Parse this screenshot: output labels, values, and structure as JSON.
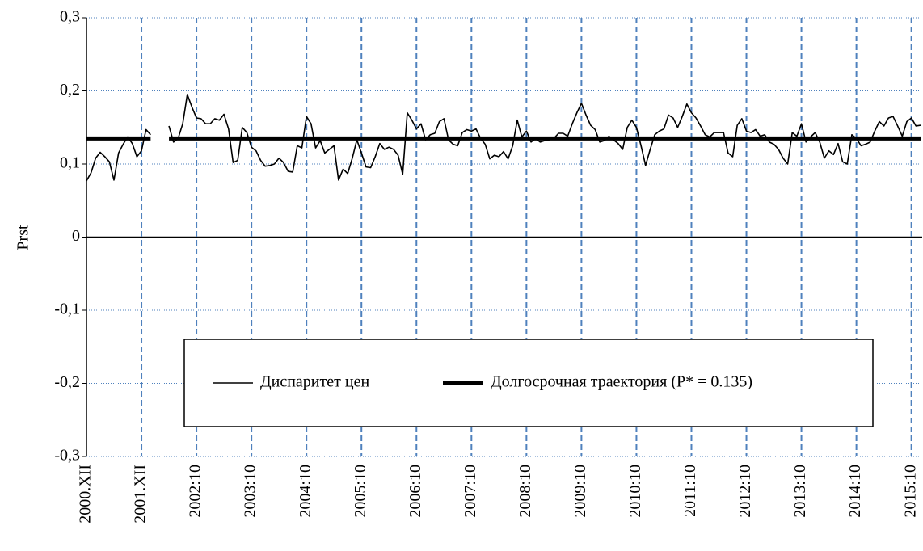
{
  "chart_data": {
    "type": "line",
    "y_label": "Prst",
    "categories": [
      "2000.XII",
      null,
      null,
      null,
      null,
      null,
      null,
      null,
      null,
      null,
      null,
      null,
      "2001.XII",
      null,
      null,
      null,
      null,
      null,
      null,
      null,
      null,
      null,
      null,
      null,
      "2002:10",
      null,
      null,
      null,
      null,
      null,
      null,
      null,
      null,
      null,
      null,
      null,
      "2003:10",
      null,
      null,
      null,
      null,
      null,
      null,
      null,
      null,
      null,
      null,
      null,
      "2004:10",
      null,
      null,
      null,
      null,
      null,
      null,
      null,
      null,
      null,
      null,
      null,
      "2005:10",
      null,
      null,
      null,
      null,
      null,
      null,
      null,
      null,
      null,
      null,
      null,
      "2006:10",
      null,
      null,
      null,
      null,
      null,
      null,
      null,
      null,
      null,
      null,
      null,
      "2007:10",
      null,
      null,
      null,
      null,
      null,
      null,
      null,
      null,
      null,
      null,
      null,
      "2008:10",
      null,
      null,
      null,
      null,
      null,
      null,
      null,
      null,
      null,
      null,
      null,
      "2009:10",
      null,
      null,
      null,
      null,
      null,
      null,
      null,
      null,
      null,
      null,
      null,
      "2010:10",
      null,
      null,
      null,
      null,
      null,
      null,
      null,
      null,
      null,
      null,
      null,
      "2011:10",
      null,
      null,
      null,
      null,
      null,
      null,
      null,
      null,
      null,
      null,
      null,
      "2012:10",
      null,
      null,
      null,
      null,
      null,
      null,
      null,
      null,
      null,
      null,
      null,
      "2013:10",
      null,
      null,
      null,
      null,
      null,
      null,
      null,
      null,
      null,
      null,
      null,
      "2014:10",
      null,
      null,
      null,
      null,
      null,
      null,
      null,
      null,
      null,
      null,
      null,
      "2015:10",
      null,
      null
    ],
    "series": [
      {
        "name": "Диспаритет цен",
        "color": "#000000",
        "width": 1.6,
        "values": [
          0.077,
          0.088,
          0.108,
          0.116,
          0.11,
          0.103,
          0.078,
          0.115,
          0.127,
          0.137,
          0.128,
          0.11,
          0.118,
          0.147,
          0.14,
          null,
          null,
          null,
          0.152,
          0.13,
          0.135,
          0.155,
          0.195,
          0.178,
          0.163,
          0.162,
          0.155,
          0.155,
          0.162,
          0.16,
          0.168,
          0.148,
          0.102,
          0.105,
          0.15,
          0.143,
          0.123,
          0.118,
          0.105,
          0.097,
          0.098,
          0.1,
          0.108,
          0.102,
          0.09,
          0.089,
          0.125,
          0.122,
          0.165,
          0.155,
          0.122,
          0.132,
          0.115,
          0.12,
          0.125,
          0.078,
          0.093,
          0.087,
          0.108,
          0.133,
          0.115,
          0.096,
          0.095,
          0.11,
          0.128,
          0.12,
          0.123,
          0.12,
          0.112,
          0.086,
          0.17,
          0.16,
          0.148,
          0.155,
          0.133,
          0.14,
          0.142,
          0.158,
          0.162,
          0.133,
          0.127,
          0.125,
          0.143,
          0.147,
          0.145,
          0.148,
          0.135,
          0.127,
          0.107,
          0.112,
          0.11,
          0.117,
          0.107,
          0.125,
          0.16,
          0.137,
          0.145,
          0.13,
          0.135,
          0.13,
          0.132,
          0.133,
          0.135,
          0.142,
          0.142,
          0.138,
          0.155,
          0.17,
          0.183,
          0.167,
          0.153,
          0.147,
          0.13,
          0.132,
          0.138,
          0.133,
          0.128,
          0.12,
          0.15,
          0.16,
          0.15,
          0.125,
          0.098,
          0.12,
          0.14,
          0.145,
          0.148,
          0.167,
          0.163,
          0.15,
          0.165,
          0.182,
          0.17,
          0.163,
          0.152,
          0.14,
          0.137,
          0.143,
          0.143,
          0.143,
          0.115,
          0.11,
          0.153,
          0.162,
          0.145,
          0.143,
          0.147,
          0.138,
          0.14,
          0.13,
          0.127,
          0.12,
          0.108,
          0.1,
          0.143,
          0.138,
          0.155,
          0.13,
          0.137,
          0.143,
          0.13,
          0.108,
          0.118,
          0.113,
          0.128,
          0.103,
          0.1,
          0.14,
          0.135,
          0.125,
          0.127,
          0.13,
          0.145,
          0.158,
          0.152,
          0.163,
          0.165,
          0.152,
          0.138,
          0.158,
          0.163,
          0.152,
          0.153
        ]
      },
      {
        "name": "Долгосрочная траектория (P* = 0.135)",
        "color": "#000000",
        "width": 5,
        "values": [
          0.135,
          0.135,
          0.135,
          0.135,
          0.135,
          0.135,
          0.135,
          0.135,
          0.135,
          0.135,
          0.135,
          0.135,
          0.135,
          0.135,
          0.135,
          null,
          null,
          null,
          0.135,
          0.135,
          0.135,
          0.135,
          0.135,
          0.135,
          0.135,
          0.135,
          0.135,
          0.135,
          0.135,
          0.135,
          0.135,
          0.135,
          0.135,
          0.135,
          0.135,
          0.135,
          0.135,
          0.135,
          0.135,
          0.135,
          0.135,
          0.135,
          0.135,
          0.135,
          0.135,
          0.135,
          0.135,
          0.135,
          0.135,
          0.135,
          0.135,
          0.135,
          0.135,
          0.135,
          0.135,
          0.135,
          0.135,
          0.135,
          0.135,
          0.135,
          0.135,
          0.135,
          0.135,
          0.135,
          0.135,
          0.135,
          0.135,
          0.135,
          0.135,
          0.135,
          0.135,
          0.135,
          0.135,
          0.135,
          0.135,
          0.135,
          0.135,
          0.135,
          0.135,
          0.135,
          0.135,
          0.135,
          0.135,
          0.135,
          0.135,
          0.135,
          0.135,
          0.135,
          0.135,
          0.135,
          0.135,
          0.135,
          0.135,
          0.135,
          0.135,
          0.135,
          0.135,
          0.135,
          0.135,
          0.135,
          0.135,
          0.135,
          0.135,
          0.135,
          0.135,
          0.135,
          0.135,
          0.135,
          0.135,
          0.135,
          0.135,
          0.135,
          0.135,
          0.135,
          0.135,
          0.135,
          0.135,
          0.135,
          0.135,
          0.135,
          0.135,
          0.135,
          0.135,
          0.135,
          0.135,
          0.135,
          0.135,
          0.135,
          0.135,
          0.135,
          0.135,
          0.135,
          0.135,
          0.135,
          0.135,
          0.135,
          0.135,
          0.135,
          0.135,
          0.135,
          0.135,
          0.135,
          0.135,
          0.135,
          0.135,
          0.135,
          0.135,
          0.135,
          0.135,
          0.135,
          0.135,
          0.135,
          0.135,
          0.135,
          0.135,
          0.135,
          0.135,
          0.135,
          0.135,
          0.135,
          0.135,
          0.135,
          0.135,
          0.135,
          0.135,
          0.135,
          0.135,
          0.135,
          0.135,
          0.135,
          0.135,
          0.135,
          0.135,
          0.135,
          0.135,
          0.135,
          0.135,
          0.135,
          0.135,
          0.135,
          0.135,
          0.135,
          0.135
        ]
      }
    ],
    "ylim": [
      -0.3,
      0.3
    ],
    "yticks": [
      {
        "value": -0.3,
        "label": "-0,3"
      },
      {
        "value": -0.2,
        "label": "-0,2"
      },
      {
        "value": -0.1,
        "label": "-0,1"
      },
      0,
      {
        "value": 0.1,
        "label": "0,1"
      },
      {
        "value": 0.2,
        "label": "0,2"
      },
      {
        "value": 0.3,
        "label": "0,3"
      }
    ],
    "grid": true,
    "grid_color": "#4f81bd"
  }
}
